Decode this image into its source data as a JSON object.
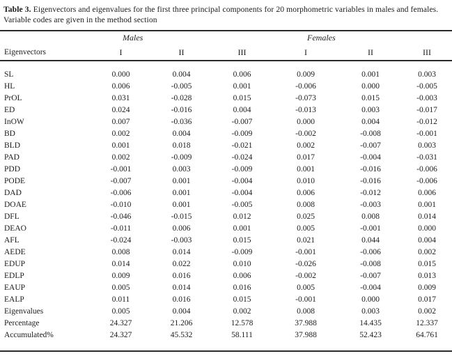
{
  "caption": {
    "label": "Table 3.",
    "text": "Eigenvectors and eigenvalues for the first three principal components for 20 morphometric variables in males and females. Variable codes are given in the method section"
  },
  "table": {
    "row_header": "Eigenvectors",
    "groups": [
      {
        "label": "Males",
        "columns": [
          "I",
          "II",
          "III"
        ]
      },
      {
        "label": "Females",
        "columns": [
          "I",
          "II",
          "III"
        ]
      }
    ],
    "rows": [
      {
        "label": "SL",
        "values": [
          "0.000",
          "0.004",
          "0.006",
          "0.009",
          "0.001",
          "0.003"
        ]
      },
      {
        "label": "HL",
        "values": [
          "0.006",
          "-0.005",
          "0.001",
          "-0.006",
          "0.000",
          "-0.005"
        ]
      },
      {
        "label": "PrOL",
        "values": [
          "0.031",
          "-0.028",
          "0.015",
          "-0.073",
          "0.015",
          "-0.003"
        ]
      },
      {
        "label": "ED",
        "values": [
          "0.024",
          "-0.016",
          "0.004",
          "-0.013",
          "0.003",
          "-0.017"
        ]
      },
      {
        "label": "InOW",
        "values": [
          "0.007",
          "-0.036",
          "-0.007",
          "0.000",
          "0.004",
          "-0.012"
        ]
      },
      {
        "label": "BD",
        "values": [
          "0.002",
          "0.004",
          "-0.009",
          "-0.002",
          "-0.008",
          "-0.001"
        ]
      },
      {
        "label": "BLD",
        "values": [
          "0.001",
          "0.018",
          "-0.021",
          "0.002",
          "-0.007",
          "0.003"
        ]
      },
      {
        "label": "PAD",
        "values": [
          "0.002",
          "-0.009",
          "-0.024",
          "0.017",
          "-0.004",
          "-0.031"
        ]
      },
      {
        "label": "PDD",
        "values": [
          "-0.001",
          "0.003",
          "-0.009",
          "0.001",
          "-0.016",
          "-0.006"
        ]
      },
      {
        "label": "PODE",
        "values": [
          "-0.007",
          "0.001",
          "-0.004",
          "0.010",
          "-0.016",
          "-0.006"
        ]
      },
      {
        "label": "DAD",
        "values": [
          "-0.006",
          "0.001",
          "-0.004",
          "0.006",
          "-0.012",
          "0.006"
        ]
      },
      {
        "label": "DOAE",
        "values": [
          "-0.010",
          "0.001",
          "-0.005",
          "0.008",
          "-0.003",
          "0.001"
        ]
      },
      {
        "label": "DFL",
        "values": [
          "-0.046",
          "-0.015",
          "0.012",
          "0.025",
          "0.008",
          "0.014"
        ]
      },
      {
        "label": "DEAO",
        "values": [
          "-0.011",
          "0.006",
          "0.001",
          "0.005",
          "-0.001",
          "0.000"
        ]
      },
      {
        "label": "AFL",
        "values": [
          "-0.024",
          "-0.003",
          "0.015",
          "0.021",
          "0.044",
          "0.004"
        ]
      },
      {
        "label": "AEDE",
        "values": [
          "0.008",
          "0.014",
          "-0.009",
          "-0.001",
          "-0.006",
          "0.002"
        ]
      },
      {
        "label": "EDUP",
        "values": [
          "0.014",
          "0.022",
          "0.010",
          "-0.026",
          "-0.008",
          "0.015"
        ]
      },
      {
        "label": "EDLP",
        "values": [
          "0.009",
          "0.016",
          "0.006",
          "-0.002",
          "-0.007",
          "0.013"
        ]
      },
      {
        "label": "EAUP",
        "values": [
          "0.005",
          "0.014",
          "0.016",
          "0.005",
          "-0.004",
          "0.009"
        ]
      },
      {
        "label": "EALP",
        "values": [
          "0.011",
          "0.016",
          "0.015",
          "-0.001",
          "0.000",
          "0.017"
        ]
      },
      {
        "label": "Eigenvalues",
        "values": [
          "0.005",
          "0.004",
          "0.002",
          "0.008",
          "0.003",
          "0.002"
        ]
      },
      {
        "label": "Percentage",
        "values": [
          "24.327",
          "21.206",
          "12.578",
          "37.988",
          "14.435",
          "12.337"
        ]
      },
      {
        "label": "Accumulated%",
        "values": [
          "24.327",
          "45.532",
          "58.111",
          "37.988",
          "52.423",
          "64.761"
        ]
      }
    ]
  },
  "colors": {
    "background": "#ffffff",
    "text": "#1c1c1c",
    "rule": "#2a2a2a"
  }
}
